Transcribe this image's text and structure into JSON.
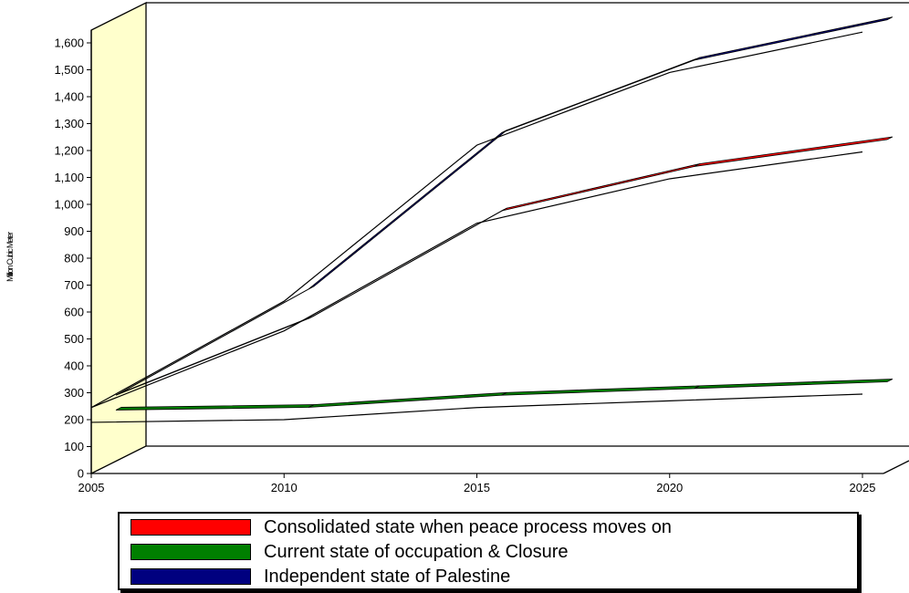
{
  "chart_data": {
    "type": "line",
    "style": "3d",
    "title": "",
    "xlabel": "",
    "ylabel": "Million Cubic Meter",
    "x_ticks": [
      "2005",
      "2010",
      "2015",
      "2020",
      "2025"
    ],
    "y_ticks": [
      "0",
      "100",
      "200",
      "300",
      "400",
      "500",
      "600",
      "700",
      "800",
      "900",
      "1,000",
      "1,100",
      "1,200",
      "1,300",
      "1,400",
      "1,500",
      "1,600"
    ],
    "ylim": [
      0,
      1600
    ],
    "xlim": [
      2005,
      2025
    ],
    "grid": false,
    "legend_position": "bottom",
    "series": [
      {
        "name": "Independent state of Palestine",
        "color": "#00007f",
        "points": [
          [
            2005,
            245
          ],
          [
            2010,
            640
          ],
          [
            2015,
            1220
          ],
          [
            2020,
            1490
          ],
          [
            2025,
            1640
          ]
        ]
      },
      {
        "name": "Consolidated state when peace process moves on",
        "color": "#ff0000",
        "points": [
          [
            2005,
            245
          ],
          [
            2010,
            530
          ],
          [
            2015,
            930
          ],
          [
            2020,
            1095
          ],
          [
            2025,
            1195
          ]
        ]
      },
      {
        "name": "Current state of occupation & Closure",
        "color": "#007f00",
        "points": [
          [
            2005,
            190
          ],
          [
            2010,
            200
          ],
          [
            2015,
            245
          ],
          [
            2020,
            270
          ],
          [
            2025,
            295
          ]
        ]
      }
    ]
  },
  "legend": {
    "items": [
      {
        "label": "Consolidated state when peace process moves on",
        "color": "#ff0000"
      },
      {
        "label": "Current state of occupation & Closure",
        "color": "#007f00"
      },
      {
        "label": "Independent state of Palestine",
        "color": "#00007f"
      }
    ]
  },
  "colors": {
    "wall": "#ffffcc",
    "text": "#000000"
  }
}
